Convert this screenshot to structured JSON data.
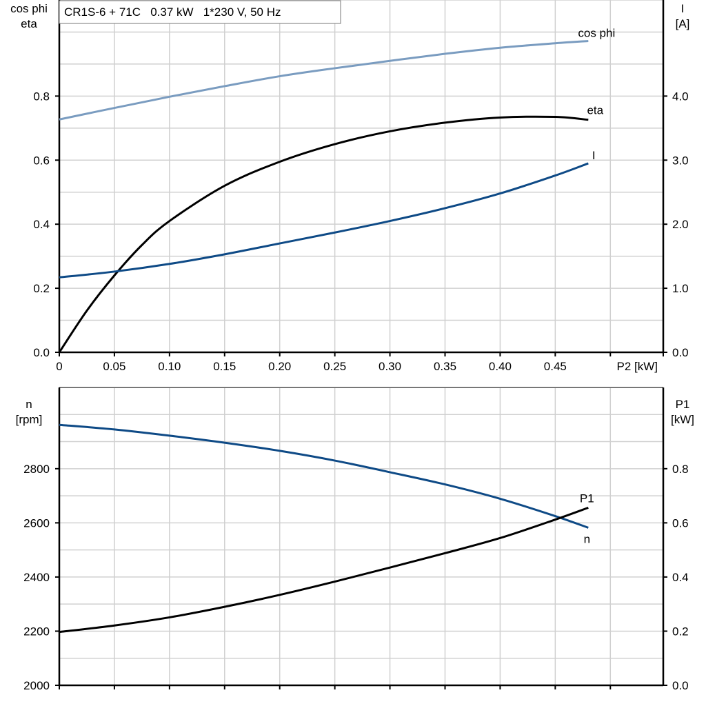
{
  "title": "CR1S-6 + 71C   0.37 kW   1*230 V, 50 Hz",
  "chart_data": [
    {
      "type": "line",
      "xlabel": "P2 [kW]",
      "xlim": [
        0,
        0.548
      ],
      "xticks": [
        "0",
        "0.05",
        "0.10",
        "0.15",
        "0.20",
        "0.25",
        "0.30",
        "0.35",
        "0.40",
        "0.45"
      ],
      "xtick_values": [
        0,
        0.05,
        0.1,
        0.15,
        0.2,
        0.25,
        0.3,
        0.35,
        0.4,
        0.45
      ],
      "ylabel_left": [
        "cos phi",
        "eta"
      ],
      "ylim_left": [
        0,
        1.1
      ],
      "yticks_left": [
        "0.0",
        "0.2",
        "0.4",
        "0.6",
        "0.8"
      ],
      "ylabel_right": [
        "I",
        "[A]"
      ],
      "ylim_right": [
        0,
        5.5
      ],
      "yticks_right": [
        "0.0",
        "1.0",
        "2.0",
        "3.0",
        "4.0"
      ],
      "grid": true,
      "series": [
        {
          "name": "cos phi",
          "axis": "left",
          "color": "#7a9cc0",
          "x": [
            0,
            0.05,
            0.1,
            0.15,
            0.2,
            0.25,
            0.3,
            0.35,
            0.4,
            0.45,
            0.48
          ],
          "y": [
            0.727,
            0.763,
            0.798,
            0.831,
            0.862,
            0.887,
            0.91,
            0.932,
            0.951,
            0.965,
            0.972
          ]
        },
        {
          "name": "eta",
          "axis": "left",
          "color": "#000000",
          "x": [
            0,
            0.025,
            0.05,
            0.075,
            0.1,
            0.15,
            0.2,
            0.25,
            0.3,
            0.35,
            0.4,
            0.45,
            0.48
          ],
          "y": [
            0,
            0.13,
            0.24,
            0.335,
            0.41,
            0.52,
            0.595,
            0.65,
            0.69,
            0.717,
            0.733,
            0.735,
            0.726
          ]
        },
        {
          "name": "I",
          "axis": "right",
          "color": "#0e4a86",
          "x": [
            0,
            0.05,
            0.1,
            0.15,
            0.2,
            0.25,
            0.3,
            0.35,
            0.4,
            0.45,
            0.48
          ],
          "y": [
            1.17,
            1.26,
            1.38,
            1.53,
            1.7,
            1.87,
            2.05,
            2.25,
            2.48,
            2.76,
            2.95
          ]
        }
      ]
    },
    {
      "type": "line",
      "xlim": [
        0,
        0.548
      ],
      "xtick_values": [
        0,
        0.05,
        0.1,
        0.15,
        0.2,
        0.25,
        0.3,
        0.35,
        0.4,
        0.45,
        0.5
      ],
      "ylabel_left": [
        "n",
        "[rpm]"
      ],
      "ylim_left": [
        2000,
        3100
      ],
      "yticks_left": [
        "2000",
        "2200",
        "2400",
        "2600",
        "2800"
      ],
      "ylabel_right": [
        "P1",
        "[kW]"
      ],
      "ylim_right": [
        0,
        1.1
      ],
      "yticks_right": [
        "0.0",
        "0.2",
        "0.4",
        "0.6",
        "0.8"
      ],
      "grid": true,
      "series": [
        {
          "name": "n",
          "axis": "left",
          "color": "#0e4a86",
          "x": [
            0,
            0.05,
            0.1,
            0.15,
            0.2,
            0.25,
            0.3,
            0.35,
            0.4,
            0.45,
            0.48
          ],
          "y": [
            2962,
            2945,
            2922,
            2896,
            2866,
            2830,
            2787,
            2742,
            2689,
            2625,
            2582
          ]
        },
        {
          "name": "P1",
          "axis": "right",
          "color": "#000000",
          "x": [
            0,
            0.05,
            0.1,
            0.15,
            0.2,
            0.25,
            0.3,
            0.35,
            0.4,
            0.45,
            0.48
          ],
          "y": [
            0.197,
            0.221,
            0.251,
            0.29,
            0.334,
            0.383,
            0.435,
            0.488,
            0.544,
            0.612,
            0.656
          ]
        }
      ]
    }
  ]
}
